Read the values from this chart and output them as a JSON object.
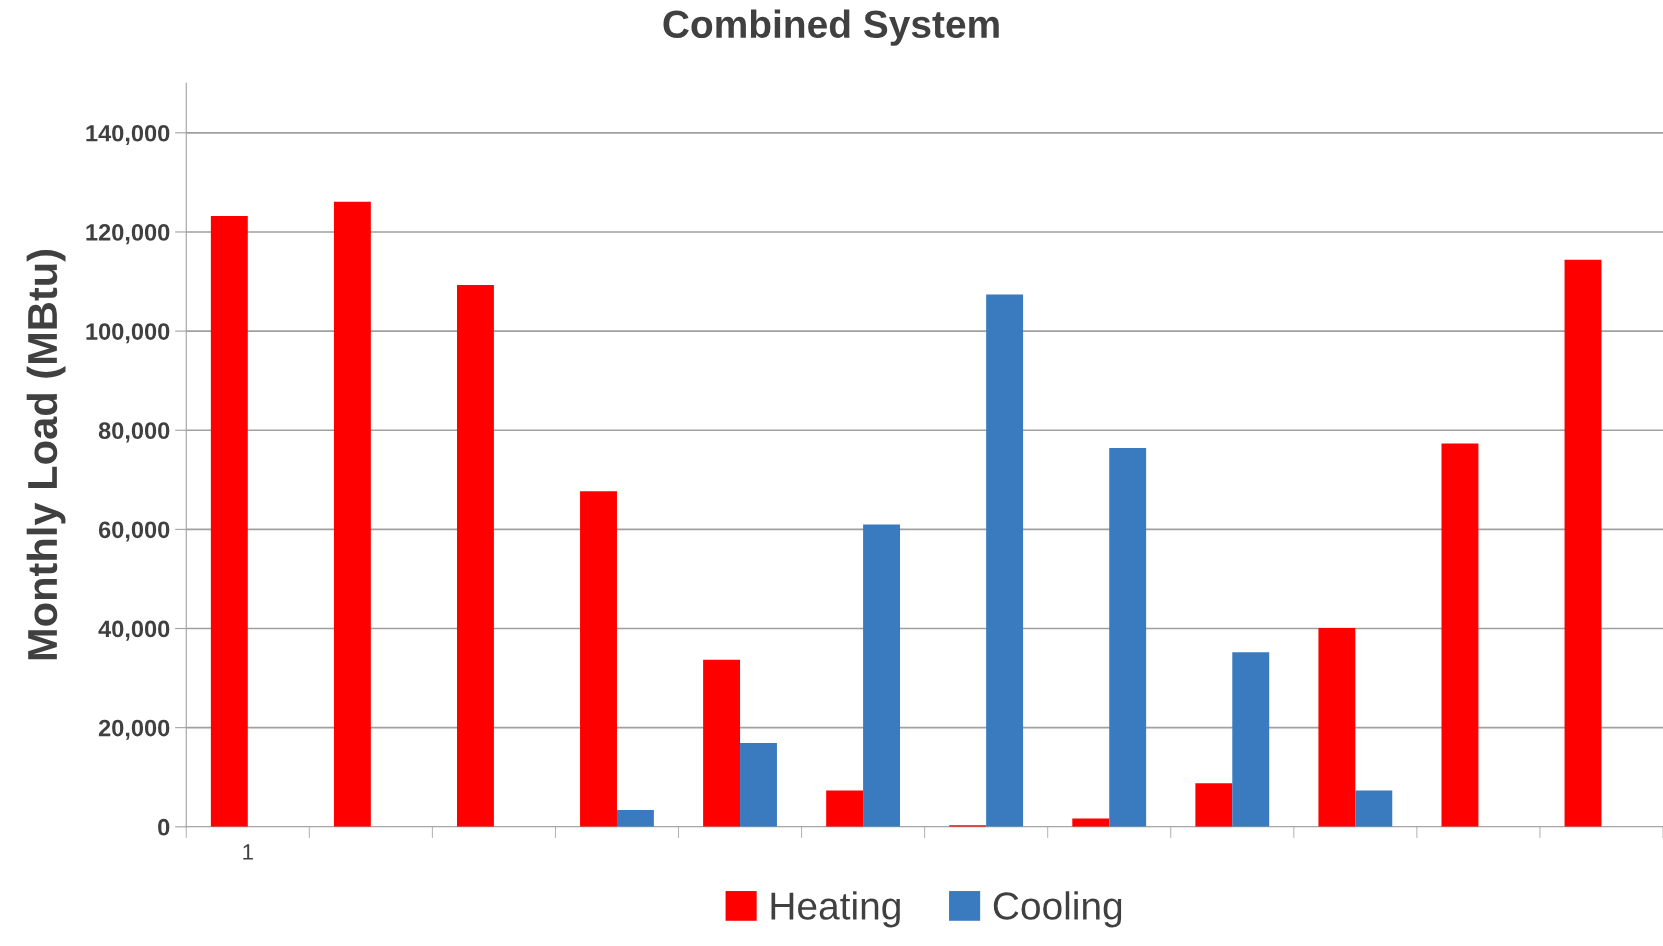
{
  "chart_data": {
    "type": "bar",
    "title": "Combined System",
    "ylabel": "Monthly Load (MBtu)",
    "categories": [
      "1",
      null,
      null,
      null,
      null,
      null,
      null,
      null,
      null,
      null,
      null,
      null
    ],
    "series": [
      {
        "name": "Heating",
        "color": "#ff0000",
        "values": [
          123200,
          126100,
          109300,
          67700,
          33700,
          7300,
          300,
          1700,
          8800,
          40100,
          77300,
          114400
        ]
      },
      {
        "name": "Cooling",
        "color": "#3a7bbf",
        "values": [
          0,
          0,
          0,
          3400,
          16900,
          61000,
          107400,
          76400,
          35200,
          7300,
          0,
          0
        ]
      }
    ],
    "ylim": [
      0,
      150000
    ],
    "yticks": [
      {
        "value": 0,
        "label": "0"
      },
      {
        "value": 20000,
        "label": "20,000"
      },
      {
        "value": 40000,
        "label": "40,000"
      },
      {
        "value": 60000,
        "label": "60,000"
      },
      {
        "value": 80000,
        "label": "80,000"
      },
      {
        "value": 100000,
        "label": "100,000"
      },
      {
        "value": 120000,
        "label": "120,000"
      },
      {
        "value": 140000,
        "label": "140,000"
      }
    ],
    "grid": "y",
    "legend": "bottom"
  }
}
